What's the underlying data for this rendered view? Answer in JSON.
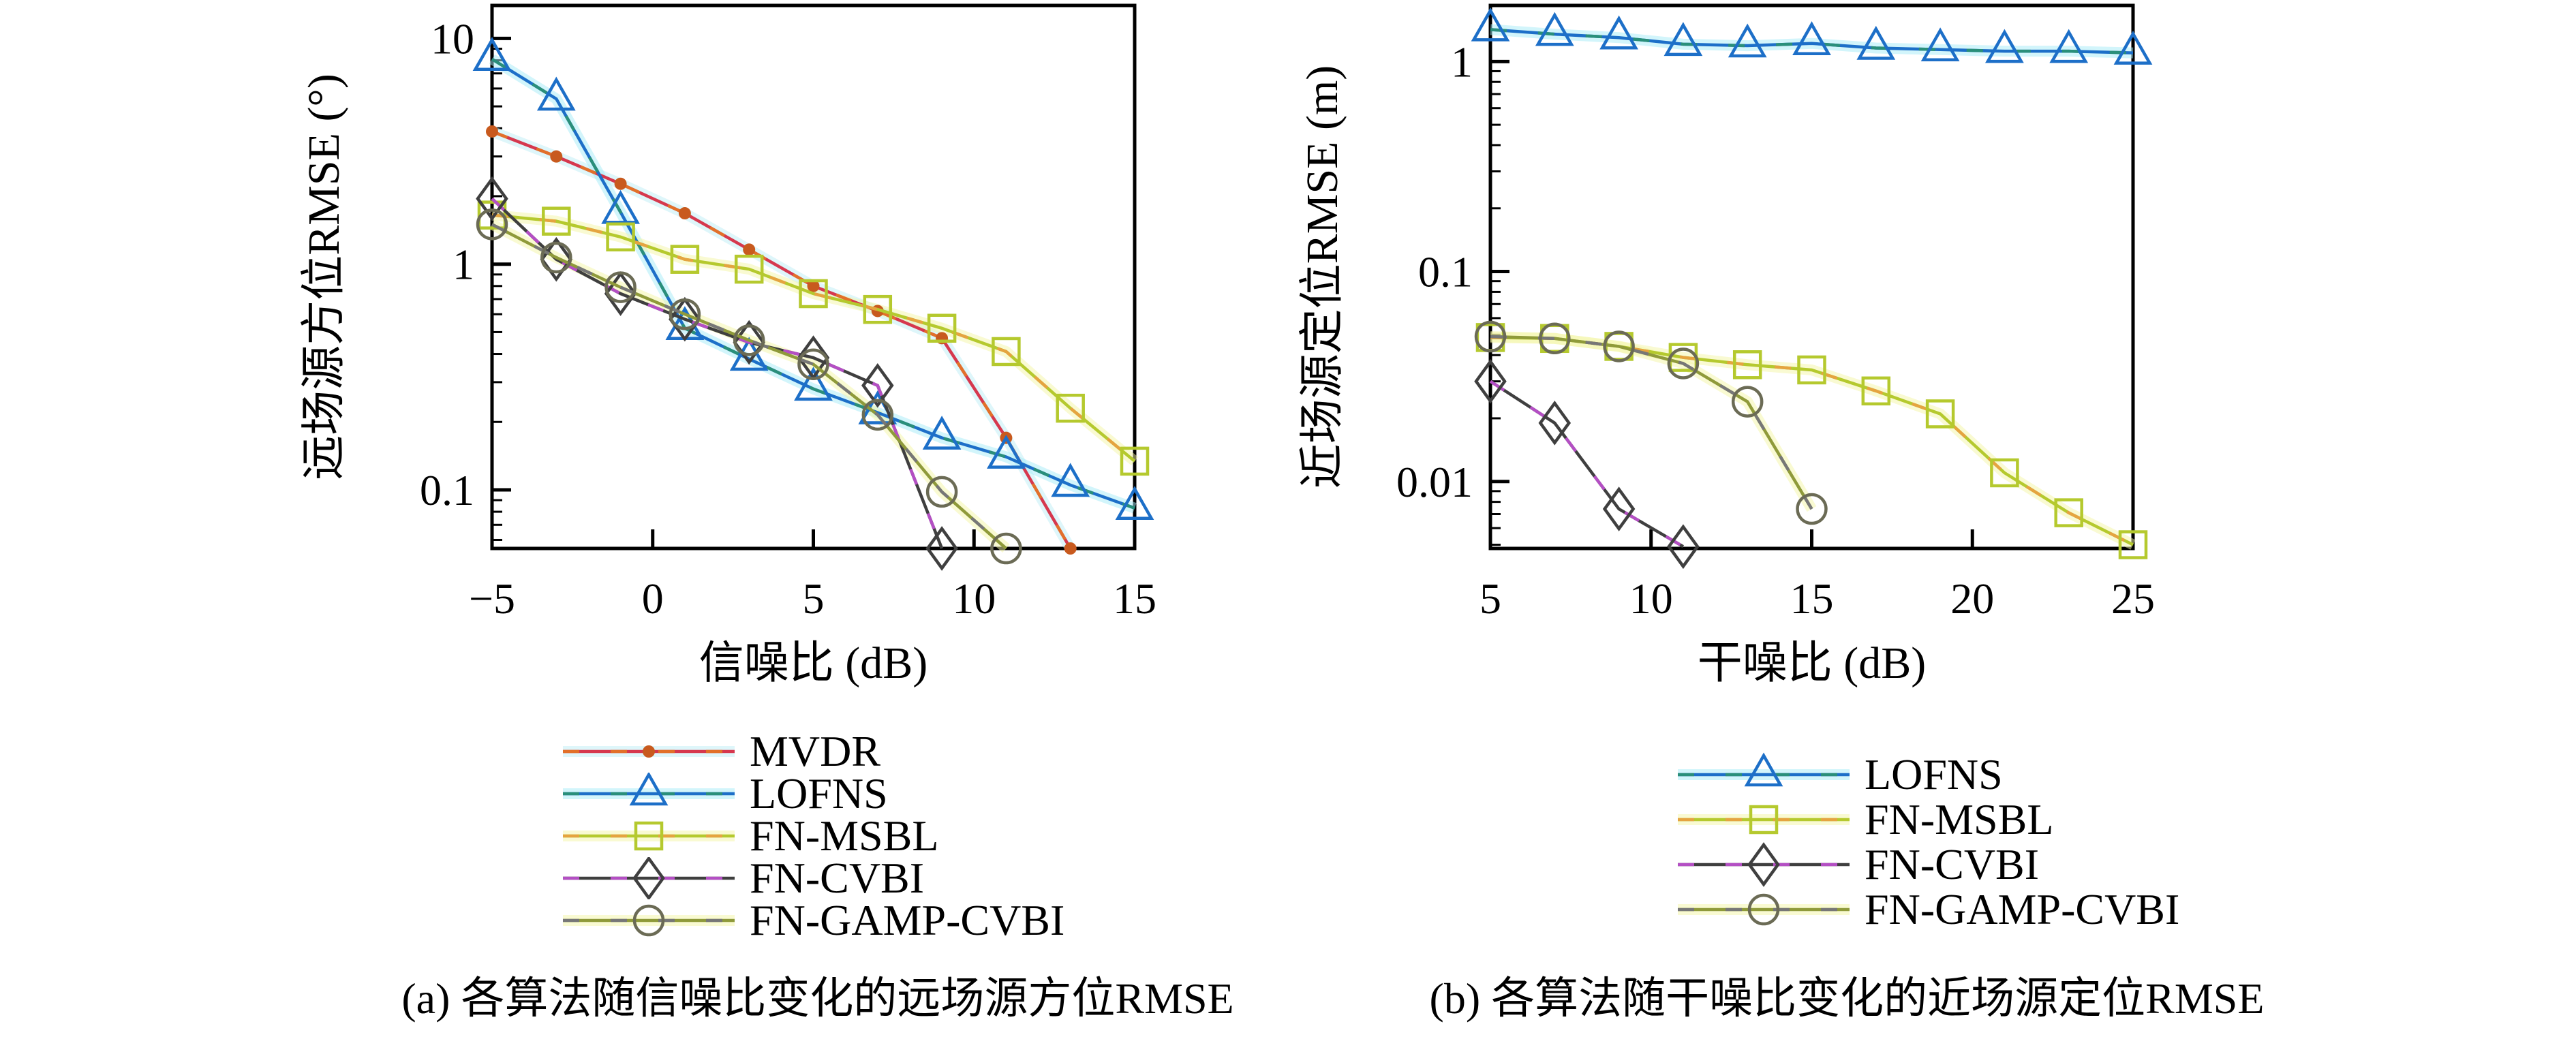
{
  "figure": {
    "background": "#ffffff",
    "axis_color": "#000000",
    "text_color": "#000000"
  },
  "captions": {
    "a": "(a) 各算法随信噪比变化的远场源方位RMSE",
    "b": "(b) 各算法随干噪比变化的近场源定位RMSE"
  },
  "legends": {
    "left": {
      "items": [
        "MVDR",
        "LOFNS",
        "FN-MSBL",
        "FN-CVBI",
        "FN-GAMP-CVBI"
      ]
    },
    "right": {
      "items": [
        "LOFNS",
        "FN-MSBL",
        "FN-CVBI",
        "FN-GAMP-CVBI"
      ]
    }
  },
  "series_styles": {
    "MVDR": {
      "color": "#d6384e",
      "dash_color": "#e2702a",
      "marker": "dot",
      "marker_color": "#c85a1e",
      "halo": "#bdeef5"
    },
    "LOFNS": {
      "color": "#1d6fc8",
      "dash_color": "#2a8f7a",
      "marker": "triangle",
      "marker_color": "#1d6fc8",
      "halo": "#a6ecf7"
    },
    "FN-MSBL": {
      "color": "#b5c92e",
      "dash_color": "#e5a440",
      "marker": "square",
      "marker_color": "#b5c92e",
      "halo": "#f4f6a6"
    },
    "FN-CVBI": {
      "color": "#3f3f3f",
      "dash_color": "#b44fc4",
      "marker": "diamond",
      "marker_color": "#3f3f3f",
      "halo": ""
    },
    "FN-GAMP-CVBI": {
      "color": "#8f9a3a",
      "dash_color": "#777777",
      "marker": "circle",
      "marker_color": "#6b6b55",
      "halo": "#f4f6a6"
    }
  },
  "chart_data": [
    {
      "id": "far-field",
      "type": "line",
      "title": "(a) 各算法随信噪比变化的远场源方位RMSE",
      "xlabel": "信噪比 (dB)",
      "ylabel": "远场源方位RMSE (°)",
      "y_scale": "log",
      "xlim": [
        -5,
        15
      ],
      "ylim": [
        0.055,
        14
      ],
      "grid": false,
      "legend_position": "below",
      "xticks": [
        {
          "v": -5,
          "label": "−5"
        },
        {
          "v": 0,
          "label": "0"
        },
        {
          "v": 5,
          "label": "5"
        },
        {
          "v": 10,
          "label": "10"
        },
        {
          "v": 15,
          "label": "15"
        }
      ],
      "yticks": [
        {
          "v": 10,
          "label": "10"
        },
        {
          "v": 1,
          "label": "1"
        },
        {
          "v": 0.1,
          "label": "0.1"
        }
      ],
      "series": [
        {
          "name": "MVDR",
          "x": [
            -5,
            -3,
            -1,
            1,
            3,
            5,
            7,
            9,
            11,
            13
          ],
          "y": [
            3.87,
            3.0,
            2.27,
            1.68,
            1.16,
            0.8,
            0.62,
            0.47,
            0.17,
            0.055
          ]
        },
        {
          "name": "LOFNS",
          "x": [
            -5,
            -3,
            -1,
            1,
            3,
            5,
            7,
            9,
            11,
            13,
            15
          ],
          "y": [
            8.1,
            5.4,
            1.7,
            0.52,
            0.38,
            0.28,
            0.22,
            0.17,
            0.14,
            0.105,
            0.083
          ]
        },
        {
          "name": "FN-MSBL",
          "x": [
            -5,
            -3,
            -1,
            1,
            3,
            5,
            7,
            9,
            11,
            13,
            15
          ],
          "y": [
            1.65,
            1.55,
            1.32,
            1.05,
            0.95,
            0.74,
            0.63,
            0.52,
            0.41,
            0.23,
            0.134
          ]
        },
        {
          "name": "FN-CVBI",
          "x": [
            -5,
            -3,
            -1,
            1,
            3,
            5,
            7,
            9
          ],
          "y": [
            1.95,
            1.05,
            0.74,
            0.57,
            0.45,
            0.385,
            0.29,
            0.055
          ]
        },
        {
          "name": "FN-GAMP-CVBI",
          "x": [
            -5,
            -3,
            -1,
            1,
            3,
            5,
            7,
            9,
            11
          ],
          "y": [
            1.5,
            1.07,
            0.79,
            0.6,
            0.46,
            0.36,
            0.215,
            0.098,
            0.055
          ]
        }
      ]
    },
    {
      "id": "near-field",
      "type": "line",
      "title": "(b) 各算法随干噪比变化的近场源定位RMSE",
      "xlabel": "干噪比 (dB)",
      "ylabel": "近场源定位RMSE (m)",
      "y_scale": "log",
      "xlim": [
        5,
        25
      ],
      "ylim": [
        0.0048,
        1.85
      ],
      "grid": false,
      "legend_position": "below",
      "xticks": [
        {
          "v": 5,
          "label": "5"
        },
        {
          "v": 10,
          "label": "10"
        },
        {
          "v": 15,
          "label": "15"
        },
        {
          "v": 20,
          "label": "20"
        },
        {
          "v": 25,
          "label": "25"
        }
      ],
      "yticks": [
        {
          "v": 1,
          "label": "1"
        },
        {
          "v": 0.1,
          "label": "0.1"
        },
        {
          "v": 0.01,
          "label": "0.01"
        }
      ],
      "series": [
        {
          "name": "LOFNS",
          "x": [
            5,
            7,
            9,
            11,
            13,
            15,
            17,
            19,
            21,
            23,
            25
          ],
          "y": [
            1.42,
            1.35,
            1.3,
            1.21,
            1.19,
            1.22,
            1.16,
            1.14,
            1.12,
            1.12,
            1.1
          ]
        },
        {
          "name": "FN-MSBL",
          "x": [
            5,
            7,
            9,
            11,
            13,
            15,
            17,
            19,
            21,
            23,
            25
          ],
          "y": [
            0.0485,
            0.048,
            0.044,
            0.039,
            0.036,
            0.034,
            0.027,
            0.021,
            0.011,
            0.0071,
            0.005
          ]
        },
        {
          "name": "FN-CVBI",
          "x": [
            5,
            7,
            9,
            11
          ],
          "y": [
            0.03,
            0.019,
            0.0074,
            0.0049
          ]
        },
        {
          "name": "FN-GAMP-CVBI",
          "x": [
            5,
            7,
            9,
            11,
            13,
            15
          ],
          "y": [
            0.049,
            0.048,
            0.044,
            0.0365,
            0.024,
            0.0074
          ]
        }
      ]
    }
  ]
}
